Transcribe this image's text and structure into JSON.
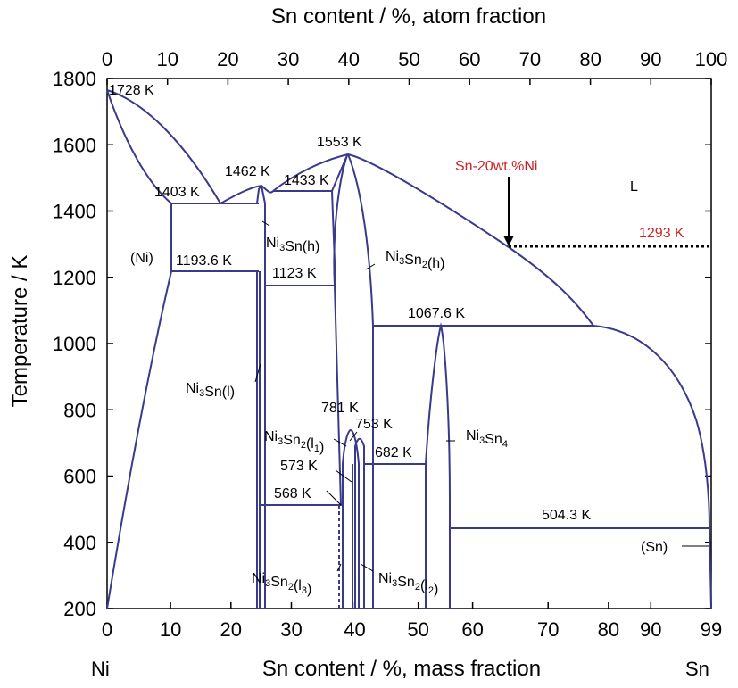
{
  "chart_data": {
    "type": "line",
    "title": "",
    "top_axis": {
      "label": "Sn content / %, atom fraction",
      "ticks": [
        "0",
        "10",
        "20",
        "30",
        "40",
        "50",
        "60",
        "70",
        "80",
        "90",
        "100"
      ]
    },
    "bottom_axis": {
      "label": "Sn content / %, mass fraction",
      "ticks": [
        {
          "label": "0",
          "value": 0
        },
        {
          "label": "10",
          "value": 10
        },
        {
          "label": "20",
          "value": 20
        },
        {
          "label": "30",
          "value": 30
        },
        {
          "label": "40",
          "value": 40
        },
        {
          "label": "50",
          "value": 50
        },
        {
          "label": "60",
          "value": 60
        },
        {
          "label": "70",
          "value": 70
        },
        {
          "label": "80",
          "value": 80
        },
        {
          "label": "90",
          "value": 90
        },
        {
          "label": "99",
          "value": 99
        }
      ],
      "left_end": "Ni",
      "right_end": "Sn"
    },
    "y_axis": {
      "label": "Temperature / K",
      "ticks": [
        "200",
        "400",
        "600",
        "800",
        "1000",
        "1200",
        "1400",
        "1600",
        "1800"
      ],
      "ylim": [
        200,
        1800
      ]
    },
    "x_range_atom_fraction": [
      0,
      100
    ],
    "temperatures": [
      {
        "label": "1728 K",
        "T": 1728
      },
      {
        "label": "1403 K",
        "T": 1403
      },
      {
        "label": "1462 K",
        "T": 1462
      },
      {
        "label": "1433 K",
        "T": 1433
      },
      {
        "label": "1553 K",
        "T": 1553
      },
      {
        "label": "1193.6 K",
        "T": 1193.6
      },
      {
        "label": "1123 K",
        "T": 1123
      },
      {
        "label": "1067.6 K",
        "T": 1067.6
      },
      {
        "label": "781 K",
        "T": 781
      },
      {
        "label": "753 K",
        "T": 753
      },
      {
        "label": "682 K",
        "T": 682
      },
      {
        "label": "573 K",
        "T": 573
      },
      {
        "label": "568 K",
        "T": 568
      },
      {
        "label": "504.3 K",
        "T": 504.3
      }
    ],
    "phases": [
      {
        "base": "(Ni)"
      },
      {
        "base": "Ni",
        "sub": "3",
        "base2": "Sn(h)"
      },
      {
        "base": "Ni",
        "sub": "3",
        "base2": "Sn",
        "sub2": "2",
        "base3": "(h)"
      },
      {
        "base": "Ni",
        "sub": "3",
        "base2": "Sn(l)"
      },
      {
        "base": "Ni",
        "sub": "3",
        "base2": "Sn",
        "sub2": "2",
        "base3": "(l",
        "sub3": "1",
        "base4": ")"
      },
      {
        "base": "Ni",
        "sub": "3",
        "base2": "Sn",
        "sub2": "4"
      },
      {
        "base": "Ni",
        "sub": "3",
        "base2": "Sn",
        "sub2": "2",
        "base3": "(l",
        "sub3": "3",
        "base4": ")"
      },
      {
        "base": "Ni",
        "sub": "3",
        "base2": "Sn",
        "sub2": "2",
        "base3": "(l",
        "sub3": "2",
        "base4": ")"
      },
      {
        "base": "(Sn)"
      },
      {
        "base": "L"
      }
    ],
    "alloy_marker": {
      "label": "Sn-20wt.%Ni",
      "temperature_label": "1293 K",
      "T": 1293,
      "atom_fraction": 67,
      "color": "#cc2222"
    },
    "line_color": "#3a3a8c",
    "grid": false
  }
}
